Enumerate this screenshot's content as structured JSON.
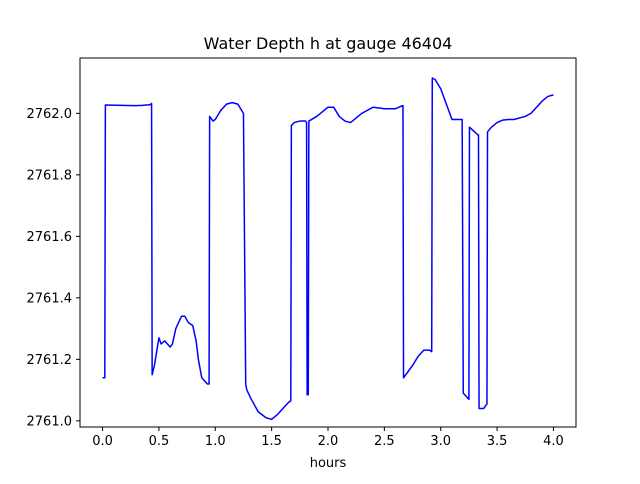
{
  "chart_data": {
    "type": "line",
    "title": "Water Depth h at gauge 46404",
    "xlabel": "hours",
    "ylabel": "",
    "xlim": [
      -0.2,
      4.2
    ],
    "ylim": [
      2760.98,
      2762.18
    ],
    "grid": false,
    "colors": {
      "line": "#0000ff",
      "axes": "#000000",
      "background": "#ffffff"
    },
    "x_ticks": [
      {
        "value": 0.0,
        "label": "0.0"
      },
      {
        "value": 0.5,
        "label": "0.5"
      },
      {
        "value": 1.0,
        "label": "1.0"
      },
      {
        "value": 1.5,
        "label": "1.5"
      },
      {
        "value": 2.0,
        "label": "2.0"
      },
      {
        "value": 2.5,
        "label": "2.5"
      },
      {
        "value": 3.0,
        "label": "3.0"
      },
      {
        "value": 3.5,
        "label": "3.5"
      },
      {
        "value": 4.0,
        "label": "4.0"
      }
    ],
    "y_ticks": [
      {
        "value": 2761.0,
        "label": "2761.0"
      },
      {
        "value": 2761.2,
        "label": "2761.2"
      },
      {
        "value": 2761.4,
        "label": "2761.4"
      },
      {
        "value": 2761.6,
        "label": "2761.6"
      },
      {
        "value": 2761.8,
        "label": "2761.8"
      },
      {
        "value": 2762.0,
        "label": "2762.0"
      }
    ],
    "series": [
      {
        "x": [
          0.0,
          0.02,
          0.025,
          0.3,
          0.35,
          0.42,
          0.435,
          0.44,
          0.46,
          0.5,
          0.52,
          0.55,
          0.6,
          0.62,
          0.65,
          0.7,
          0.73,
          0.76,
          0.8,
          0.83,
          0.85,
          0.88,
          0.93,
          0.945,
          0.95,
          0.98,
          1.0,
          1.05,
          1.1,
          1.15,
          1.2,
          1.25,
          1.27,
          1.28,
          1.32,
          1.38,
          1.45,
          1.5,
          1.55,
          1.6,
          1.65,
          1.67,
          1.675,
          1.7,
          1.75,
          1.8,
          1.81,
          1.815,
          1.825,
          1.83,
          1.9,
          2.0,
          2.05,
          2.1,
          2.15,
          2.2,
          2.3,
          2.4,
          2.5,
          2.6,
          2.66,
          2.665,
          2.67,
          2.75,
          2.8,
          2.85,
          2.9,
          2.92,
          2.925,
          2.95,
          3.0,
          3.05,
          3.1,
          3.15,
          3.19,
          3.2,
          3.25,
          3.255,
          3.3,
          3.33,
          3.335,
          3.34,
          3.38,
          3.41,
          3.415,
          3.45,
          3.5,
          3.55,
          3.6,
          3.65,
          3.7,
          3.75,
          3.8,
          3.85,
          3.9,
          3.95,
          4.0
        ],
        "y": [
          2761.14,
          2761.14,
          2762.027,
          2762.025,
          2762.026,
          2762.028,
          2762.032,
          2761.15,
          2761.18,
          2761.27,
          2761.25,
          2761.26,
          2761.24,
          2761.25,
          2761.3,
          2761.34,
          2761.34,
          2761.32,
          2761.31,
          2761.26,
          2761.2,
          2761.14,
          2761.12,
          2761.12,
          2761.99,
          2761.975,
          2761.98,
          2762.01,
          2762.03,
          2762.035,
          2762.03,
          2762.0,
          2761.12,
          2761.1,
          2761.07,
          2761.03,
          2761.01,
          2761.005,
          2761.02,
          2761.04,
          2761.06,
          2761.065,
          2761.96,
          2761.97,
          2761.975,
          2761.975,
          2761.97,
          2761.085,
          2761.085,
          2761.975,
          2761.99,
          2762.02,
          2762.02,
          2761.99,
          2761.975,
          2761.97,
          2762.0,
          2762.02,
          2762.015,
          2762.015,
          2762.025,
          2762.025,
          2761.14,
          2761.18,
          2761.21,
          2761.23,
          2761.23,
          2761.225,
          2762.115,
          2762.11,
          2762.08,
          2762.03,
          2761.98,
          2761.98,
          2761.98,
          2761.09,
          2761.07,
          2761.955,
          2761.94,
          2761.93,
          2761.93,
          2761.04,
          2761.04,
          2761.055,
          2761.94,
          2761.955,
          2761.97,
          2761.978,
          2761.98,
          2761.98,
          2761.985,
          2761.99,
          2762.0,
          2762.02,
          2762.04,
          2762.055,
          2762.06
        ]
      }
    ]
  }
}
